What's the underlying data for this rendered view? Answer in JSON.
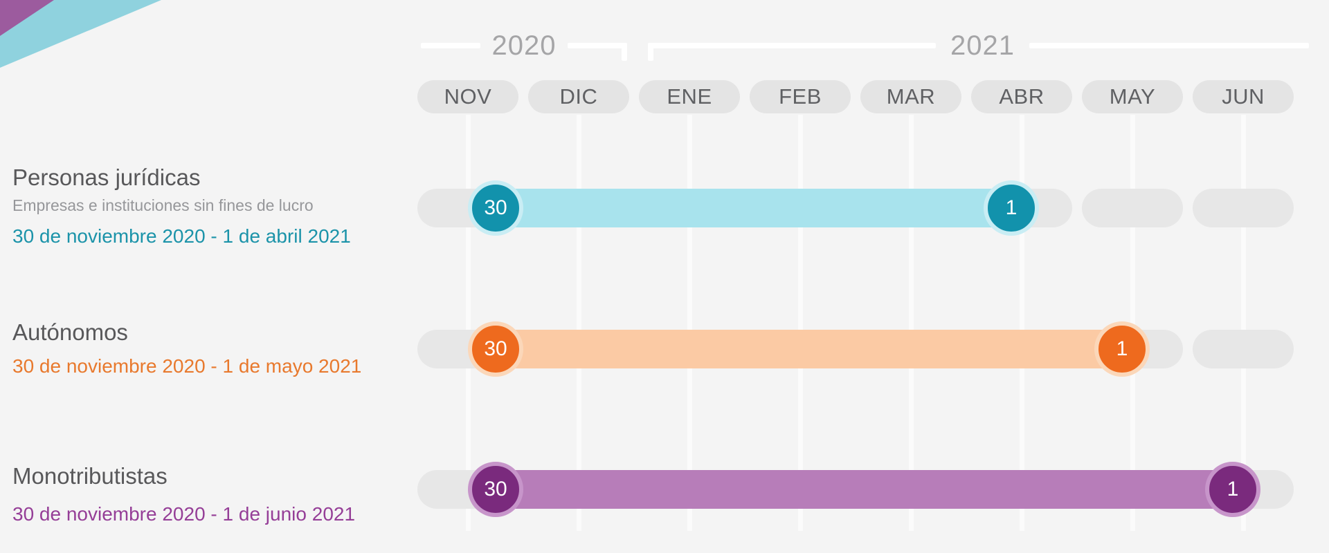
{
  "page": {
    "background": "#f4f4f4"
  },
  "decorations": {
    "corner_triangles": [
      {
        "name": "teal-triangle",
        "color": "#8fd2de"
      },
      {
        "name": "purple-triangle",
        "color": "#9c5b9e"
      }
    ]
  },
  "timeline": {
    "years": [
      {
        "label": "2020",
        "span_months": [
          "NOV",
          "DIC"
        ]
      },
      {
        "label": "2021",
        "span_months": [
          "ENE",
          "FEB",
          "MAR",
          "ABR",
          "MAY",
          "JUN"
        ]
      }
    ],
    "months": [
      "NOV",
      "DIC",
      "ENE",
      "FEB",
      "MAR",
      "ABR",
      "MAY",
      "JUN"
    ]
  },
  "rows": [
    {
      "id": "personas-juridicas",
      "title": "Personas jurídicas",
      "subtitle": "Empresas e instituciones sin fines de lucro",
      "date_range": "30 de noviembre 2020 - 1 de abril 2021",
      "start_label": "30",
      "end_label": "1",
      "start_month": "NOV",
      "end_month": "ABR",
      "colors": {
        "bar": "#a8e3ed",
        "marker": "#1292ac",
        "marker_ring": "#c9edf4",
        "date_text": "#1b93a9"
      }
    },
    {
      "id": "autonomos",
      "title": "Autónomos",
      "subtitle": "",
      "date_range": "30 de noviembre 2020 - 1 de mayo 2021",
      "start_label": "30",
      "end_label": "1",
      "start_month": "NOV",
      "end_month": "MAY",
      "colors": {
        "bar": "#fbcaa4",
        "marker": "#ee6a1e",
        "marker_ring": "#fbd7b9",
        "date_text": "#e8792d"
      }
    },
    {
      "id": "monotributistas",
      "title": "Monotributistas",
      "subtitle": "",
      "date_range": "30 de noviembre 2020 - 1 de junio 2021",
      "start_label": "30",
      "end_label": "1",
      "start_month": "NOV",
      "end_month": "JUN",
      "colors": {
        "bar": "#b77db9",
        "marker": "#7a2a7d",
        "marker_ring": "#c795ca",
        "date_text": "#953e97"
      }
    }
  ],
  "chart_data": {
    "type": "bar",
    "variant": "gantt-timeline",
    "title": "",
    "x_axis": {
      "months": [
        "NOV",
        "DIC",
        "ENE",
        "FEB",
        "MAR",
        "ABR",
        "MAY",
        "JUN"
      ],
      "years": [
        {
          "label": "2020",
          "months": [
            "NOV",
            "DIC"
          ]
        },
        {
          "label": "2021",
          "months": [
            "ENE",
            "FEB",
            "MAR",
            "ABR",
            "MAY",
            "JUN"
          ]
        }
      ]
    },
    "series": [
      {
        "name": "Personas jurídicas",
        "description": "Empresas e instituciones sin fines de lucro",
        "start": "30 de noviembre 2020",
        "end": "1 de abril 2021",
        "start_day_label": "30",
        "end_day_label": "1",
        "color": "#1292ac"
      },
      {
        "name": "Autónomos",
        "description": "",
        "start": "30 de noviembre 2020",
        "end": "1 de mayo 2021",
        "start_day_label": "30",
        "end_day_label": "1",
        "color": "#ee6a1e"
      },
      {
        "name": "Monotributistas",
        "description": "",
        "start": "30 de noviembre 2020",
        "end": "1 de junio 2021",
        "start_day_label": "30",
        "end_day_label": "1",
        "color": "#7a2a7d"
      }
    ],
    "legend": "none",
    "grid": "vertical-month-lines"
  }
}
